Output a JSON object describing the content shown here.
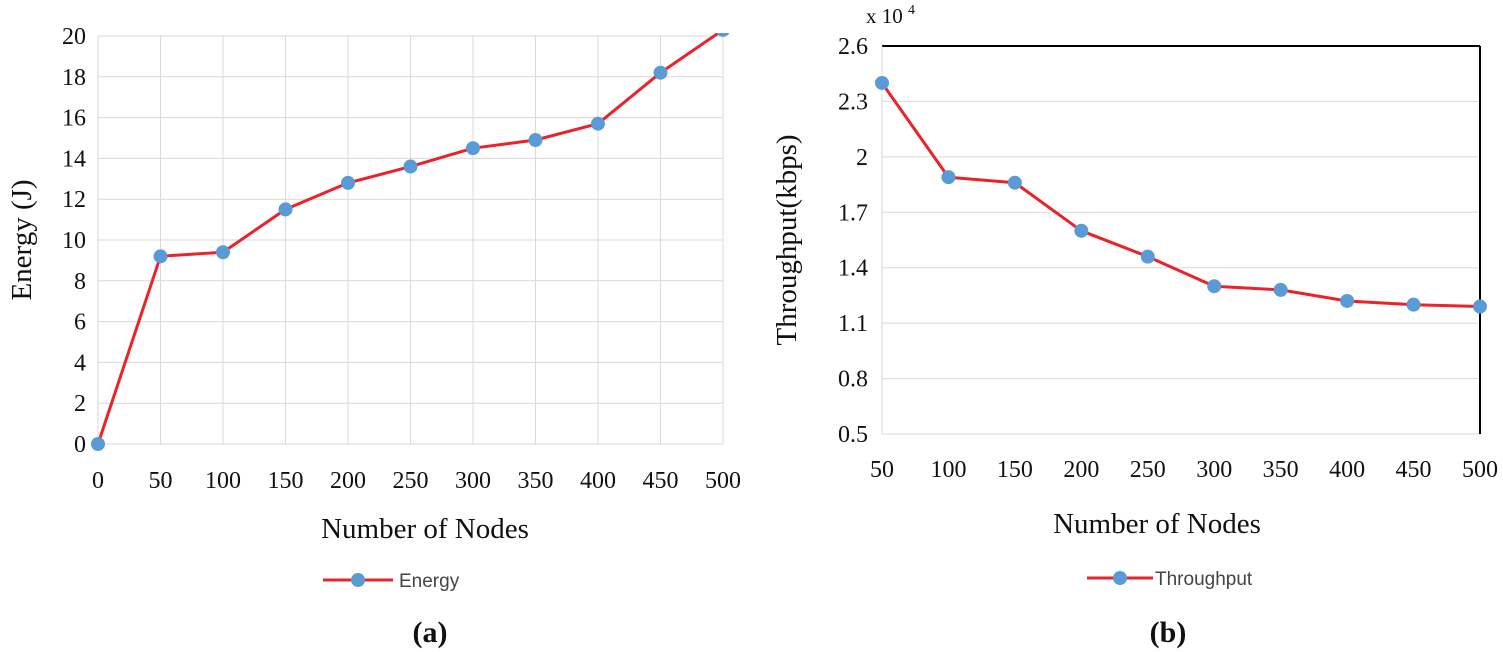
{
  "chart_data": [
    {
      "type": "line",
      "panel_label": "(a)",
      "title": "",
      "xlabel": "Number of Nodes",
      "ylabel": "Energy (J)",
      "x": [
        0,
        50,
        100,
        150,
        200,
        250,
        300,
        350,
        400,
        450,
        500
      ],
      "x_tick_labels": [
        "0",
        "50",
        "100",
        "150",
        "200",
        "250",
        "300",
        "350",
        "400",
        "450",
        "500"
      ],
      "y_tick_labels": [
        "0",
        "2",
        "4",
        "6",
        "8",
        "10",
        "12",
        "14",
        "16",
        "18",
        "20"
      ],
      "ylim": [
        0,
        20
      ],
      "grid": true,
      "legend_position": "bottom-center",
      "series": [
        {
          "name": "Energy",
          "line_color": "#e8232a",
          "marker_color": "#5b9bd5",
          "values": [
            0,
            9.2,
            9.4,
            11.5,
            12.8,
            13.6,
            14.5,
            14.9,
            15.7,
            18.2,
            20.3
          ]
        }
      ]
    },
    {
      "type": "line",
      "panel_label": "(b)",
      "title": "",
      "xlabel": "Number of Nodes",
      "ylabel": "Throughput(kbps)",
      "y_multiplier_label": "x 10",
      "y_multiplier_exponent": "4",
      "x": [
        50,
        100,
        150,
        200,
        250,
        300,
        350,
        400,
        450,
        500
      ],
      "x_tick_labels": [
        "50",
        "100",
        "150",
        "200",
        "250",
        "300",
        "350",
        "400",
        "450",
        "500"
      ],
      "y_tick_labels": [
        "0.5",
        "0.8",
        "1.1",
        "1.4",
        "1.7",
        "2",
        "2.3",
        "2.6"
      ],
      "ylim": [
        0.5,
        2.6
      ],
      "grid": true,
      "legend_position": "bottom-center",
      "series": [
        {
          "name": "Throughput",
          "line_color": "#e8232a",
          "marker_color": "#5b9bd5",
          "values": [
            2.4,
            1.89,
            1.86,
            1.6,
            1.46,
            1.3,
            1.28,
            1.22,
            1.2,
            1.19
          ]
        }
      ]
    }
  ]
}
